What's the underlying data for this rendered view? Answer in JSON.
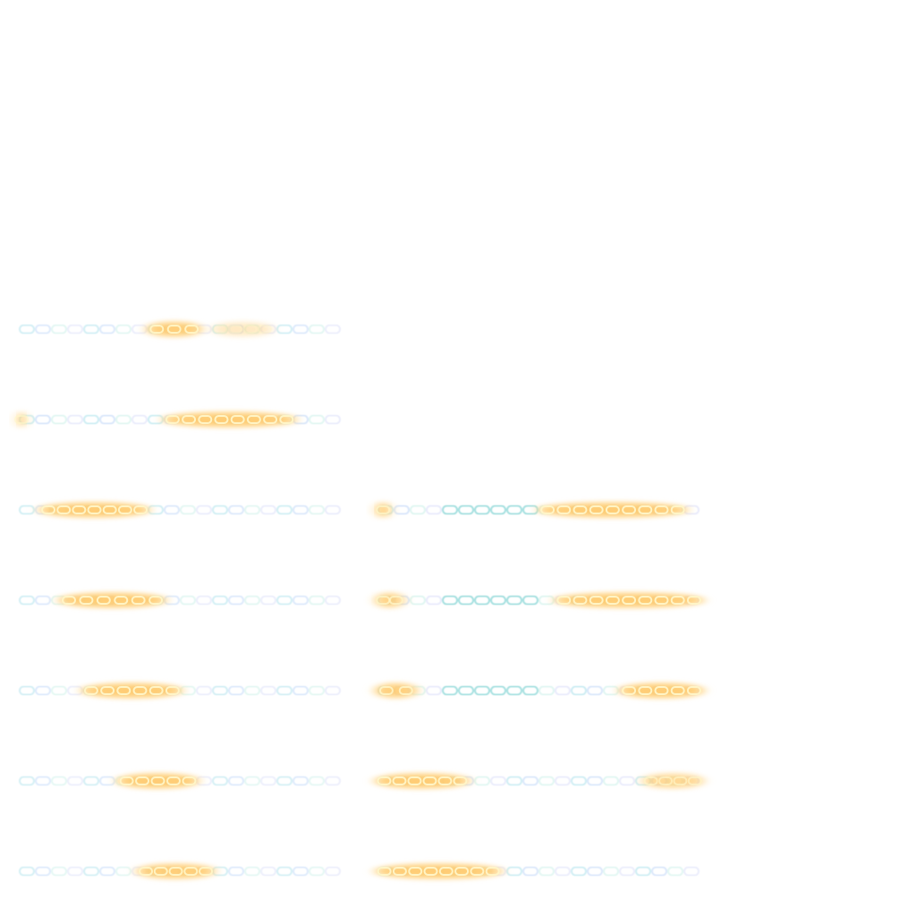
{
  "sprite_sheet": {
    "name": "chain-glow",
    "background": "#ffffff",
    "palette": {
      "chain_cool": [
        "#bfe8f0",
        "#cfe0fa",
        "#d7f4ee",
        "#e3e6fb"
      ],
      "chain_mid": "#8fd8d8",
      "glow_core": "#fff6c8",
      "glow_outer": "#ffc766",
      "glow_halo": "#ffdf9e",
      "hint_green": "#d4f5b8",
      "hint_pink": "#f6d6ee"
    },
    "rows": [
      {
        "frames": [
          {
            "intensity": 0.55,
            "glows": [
              {
                "from": 0.4,
                "to": 0.56,
                "strength": 0.95
              },
              {
                "from": 0.6,
                "to": 0.78,
                "strength": 0.35
              }
            ],
            "chain_tint": "cool"
          }
        ]
      },
      {
        "frames": [
          {
            "intensity": 0.85,
            "glows": [
              {
                "from": 0.0,
                "to": 0.02,
                "strength": 0.7
              },
              {
                "from": 0.45,
                "to": 0.85,
                "strength": 1.0
              }
            ],
            "chain_tint": "cool"
          }
        ]
      },
      {
        "frames": [
          {
            "intensity": 0.6,
            "glows": [
              {
                "from": 0.07,
                "to": 0.4,
                "strength": 1.0
              }
            ],
            "chain_tint": "cool"
          },
          {
            "intensity": 1.0,
            "glows": [
              {
                "from": 0.0,
                "to": 0.04,
                "strength": 0.8
              },
              {
                "from": 0.5,
                "to": 0.95,
                "strength": 1.0
              }
            ],
            "chain_tint": "mid"
          }
        ]
      },
      {
        "frames": [
          {
            "intensity": 0.55,
            "glows": [
              {
                "from": 0.13,
                "to": 0.45,
                "strength": 1.0
              }
            ],
            "chain_tint": "cool"
          },
          {
            "intensity": 1.0,
            "glows": [
              {
                "from": 0.0,
                "to": 0.08,
                "strength": 0.8
              },
              {
                "from": 0.55,
                "to": 1.0,
                "strength": 1.0
              }
            ],
            "chain_tint": "mid"
          }
        ]
      },
      {
        "frames": [
          {
            "intensity": 0.5,
            "glows": [
              {
                "from": 0.2,
                "to": 0.5,
                "strength": 1.0
              }
            ],
            "chain_tint": "cool"
          },
          {
            "intensity": 0.9,
            "glows": [
              {
                "from": 0.0,
                "to": 0.12,
                "strength": 0.9
              },
              {
                "from": 0.75,
                "to": 1.0,
                "strength": 1.0
              }
            ],
            "chain_tint": "mid"
          }
        ]
      },
      {
        "frames": [
          {
            "intensity": 0.45,
            "glows": [
              {
                "from": 0.31,
                "to": 0.55,
                "strength": 1.0
              }
            ],
            "chain_tint": "cool"
          },
          {
            "intensity": 0.75,
            "glows": [
              {
                "from": 0.0,
                "to": 0.28,
                "strength": 1.0
              },
              {
                "from": 0.82,
                "to": 1.0,
                "strength": 0.7
              }
            ],
            "chain_tint": "cool"
          }
        ]
      },
      {
        "frames": [
          {
            "intensity": 0.45,
            "glows": [
              {
                "from": 0.37,
                "to": 0.6,
                "strength": 0.95
              }
            ],
            "chain_tint": "cool"
          },
          {
            "intensity": 0.7,
            "glows": [
              {
                "from": 0.0,
                "to": 0.38,
                "strength": 1.0
              }
            ],
            "chain_tint": "cool"
          }
        ]
      }
    ]
  }
}
